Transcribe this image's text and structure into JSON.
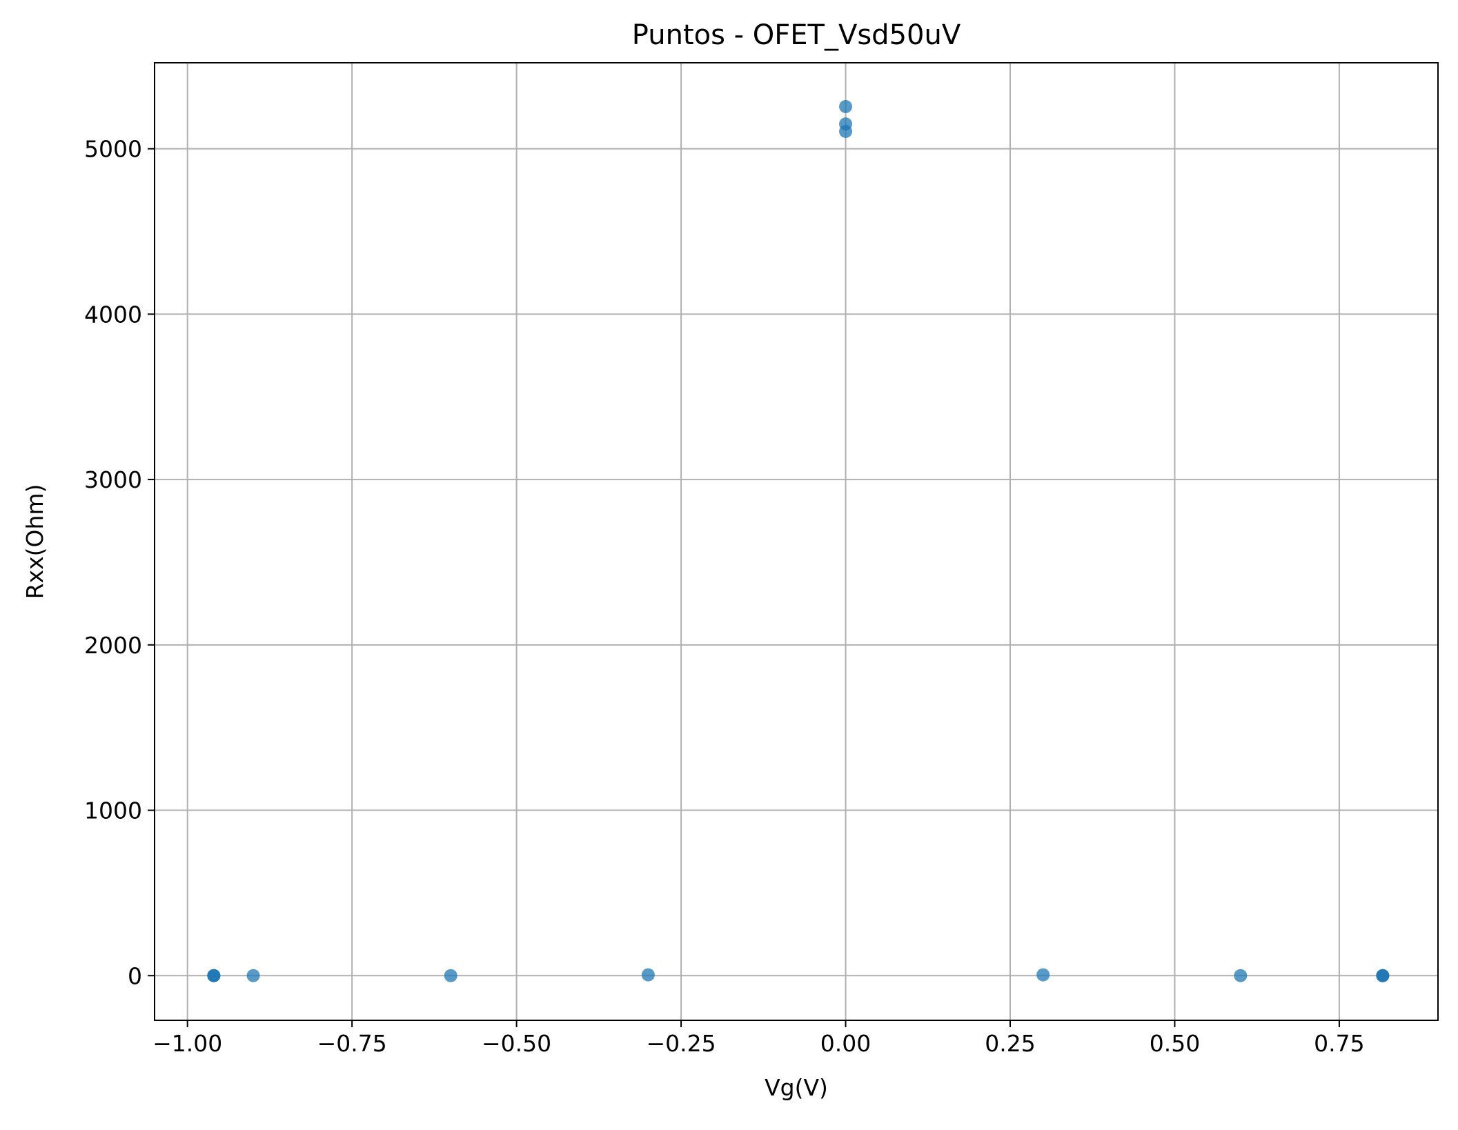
{
  "chart_data": {
    "type": "scatter",
    "title": "Puntos - OFET_Vsd50uV",
    "xlabel": "Vg(V)",
    "ylabel": "Rxx(Ohm)",
    "xlim": [
      -1.05,
      0.9
    ],
    "ylim": [
      -270,
      5520
    ],
    "xticks": [
      -1.0,
      -0.75,
      -0.5,
      -0.25,
      0.0,
      0.25,
      0.5,
      0.75
    ],
    "xtick_labels": [
      "−1.00",
      "−0.75",
      "−0.50",
      "−0.25",
      "0.00",
      "0.25",
      "0.50",
      "0.75"
    ],
    "yticks": [
      0,
      1000,
      2000,
      3000,
      4000,
      5000
    ],
    "ytick_labels": [
      "0",
      "1000",
      "2000",
      "3000",
      "4000",
      "5000"
    ],
    "grid": true,
    "marker_color": "#1f77b4",
    "marker_alpha": 0.75,
    "points": [
      {
        "x": -0.96,
        "y": 0
      },
      {
        "x": -0.96,
        "y": 0
      },
      {
        "x": -0.96,
        "y": 0
      },
      {
        "x": -0.9,
        "y": 0
      },
      {
        "x": -0.6,
        "y": 0
      },
      {
        "x": -0.3,
        "y": 5
      },
      {
        "x": 0.0,
        "y": 5255
      },
      {
        "x": 0.0,
        "y": 5150
      },
      {
        "x": 0.0,
        "y": 5105
      },
      {
        "x": 0.3,
        "y": 5
      },
      {
        "x": 0.6,
        "y": 0
      },
      {
        "x": 0.816,
        "y": 0
      },
      {
        "x": 0.816,
        "y": 0
      },
      {
        "x": 0.816,
        "y": 0
      }
    ]
  }
}
